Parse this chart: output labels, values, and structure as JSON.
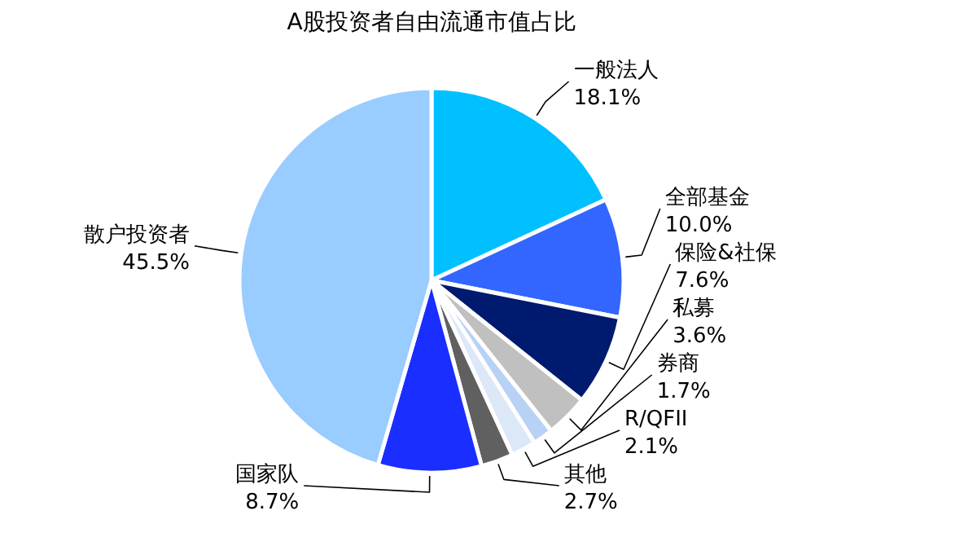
{
  "chart_data": {
    "type": "pie",
    "title": "A股投资者自由流通市值占比",
    "categories": [
      "一般法人",
      "全部基金",
      "保险&社保",
      "私募",
      "券商",
      "R/QFII",
      "其他",
      "国家队",
      "散户投资者"
    ],
    "values": [
      18.1,
      10.0,
      7.6,
      3.6,
      1.7,
      2.1,
      2.7,
      8.7,
      45.5
    ],
    "colors": [
      "#00c0ff",
      "#3366ff",
      "#001a70",
      "#c0c0c0",
      "#b8d2f5",
      "#dce8f8",
      "#606060",
      "#1a2eff",
      "#99ccff"
    ],
    "value_labels": [
      "18.1%",
      "10.0%",
      "7.6%",
      "3.6%",
      "1.7%",
      "2.1%",
      "2.7%",
      "8.7%",
      "45.5%"
    ]
  }
}
